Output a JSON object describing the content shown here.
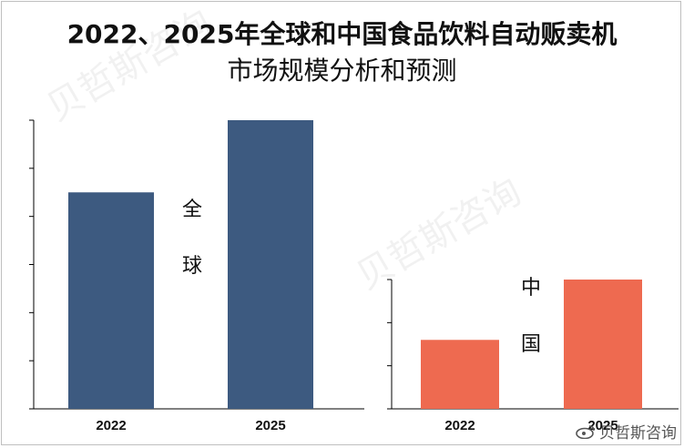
{
  "title_line1": "2022、2025年全球和中国食品饮料自动贩卖机",
  "title_line2": "市场规模分析和预测",
  "watermark_text": "贝哲斯咨询",
  "brand_text": "贝哲斯咨询",
  "chart_data": [
    {
      "type": "bar",
      "categories": [
        "2022",
        "2025"
      ],
      "values": [
        45,
        60
      ],
      "label": "全球",
      "label_chars": [
        "全",
        "球"
      ],
      "ylim": [
        0,
        60
      ],
      "color": "#3d5a80",
      "grid": false
    },
    {
      "type": "bar",
      "categories": [
        "2022",
        "2025"
      ],
      "values": [
        16,
        30
      ],
      "label": "中国",
      "label_chars": [
        "中",
        "国"
      ],
      "ylim": [
        0,
        30
      ],
      "color": "#ee6a50",
      "grid": false
    }
  ]
}
